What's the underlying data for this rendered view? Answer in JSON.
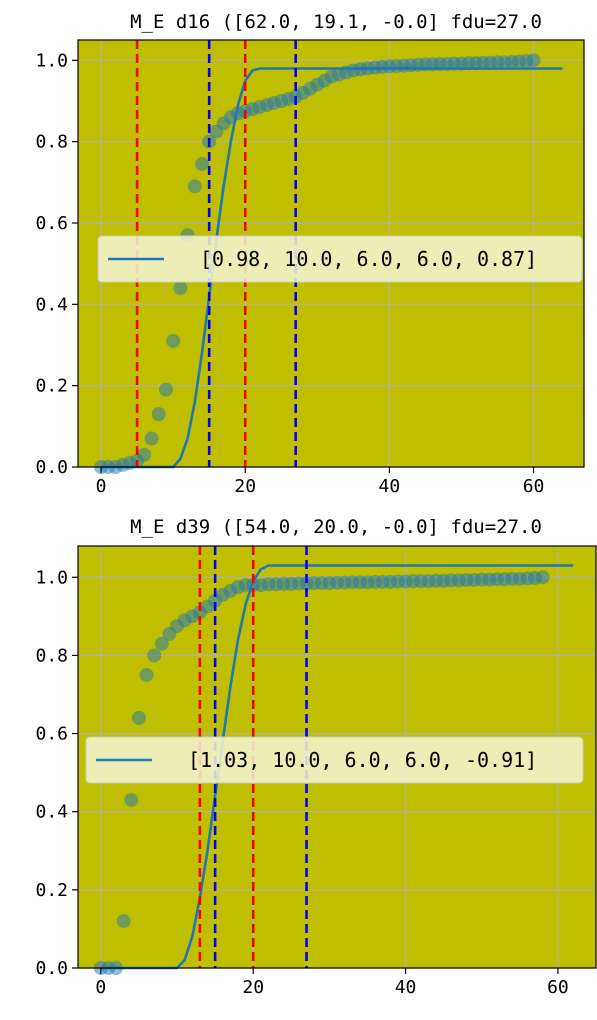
{
  "colors": {
    "axes_bg": "#bfbf00",
    "grid": "#b0b0b0",
    "points": "#1f77b4",
    "fit_line": "#1f77b4",
    "vline_red": "#ff0000",
    "vline_blue": "#0000ff",
    "legend_bg": "#f4f4d6"
  },
  "chart_data": [
    {
      "type": "scatter",
      "title": "M_E d16 ([62.0, 19.1, -0.0] fdu=27.0",
      "xlim": [
        -3.2,
        67
      ],
      "ylim": [
        0,
        1.05
      ],
      "x_ticks": [
        0,
        20,
        40,
        60
      ],
      "x_tick_labels": [
        "0",
        "20",
        "40",
        "60"
      ],
      "y_ticks": [
        0,
        0.2,
        0.4,
        0.6,
        0.8,
        1.0
      ],
      "y_tick_labels": [
        "0.0",
        "0.2",
        "0.4",
        "0.6",
        "0.8",
        "1.0"
      ],
      "grid": true,
      "legend_placement": "center-left",
      "series": [
        {
          "kind": "scatter",
          "x": [
            0,
            1,
            2,
            3,
            4,
            5,
            6,
            7,
            8,
            9,
            10,
            11,
            12,
            13,
            14,
            15,
            16,
            17,
            18,
            19,
            20,
            21,
            22,
            23,
            24,
            25,
            26,
            27,
            28,
            29,
            30,
            31,
            32,
            33,
            34,
            35,
            36,
            37,
            38,
            39,
            40,
            41,
            42,
            43,
            44,
            45,
            46,
            47,
            48,
            49,
            50,
            51,
            52,
            53,
            54,
            55,
            56,
            57,
            58,
            59,
            60
          ],
          "y": [
            0.0,
            0.0,
            0.0,
            0.005,
            0.01,
            0.015,
            0.03,
            0.07,
            0.13,
            0.19,
            0.31,
            0.44,
            0.57,
            0.69,
            0.745,
            0.8,
            0.825,
            0.845,
            0.86,
            0.87,
            0.875,
            0.88,
            0.885,
            0.89,
            0.895,
            0.9,
            0.905,
            0.91,
            0.92,
            0.93,
            0.94,
            0.95,
            0.96,
            0.965,
            0.97,
            0.975,
            0.978,
            0.98,
            0.982,
            0.984,
            0.985,
            0.986,
            0.987,
            0.988,
            0.989,
            0.99,
            0.99,
            0.991,
            0.991,
            0.992,
            0.992,
            0.993,
            0.993,
            0.994,
            0.994,
            0.995,
            0.995,
            0.996,
            0.997,
            0.998,
            1.0
          ]
        },
        {
          "kind": "line",
          "name": "[0.98, 10.0, 6.0, 6.0, 0.87]",
          "x": [
            0,
            10,
            11,
            12,
            13,
            14,
            15,
            16,
            17,
            18,
            19,
            20,
            21,
            22,
            30,
            40,
            50,
            60,
            64
          ],
          "y": [
            0,
            0,
            0.02,
            0.07,
            0.16,
            0.28,
            0.42,
            0.56,
            0.69,
            0.8,
            0.89,
            0.95,
            0.975,
            0.98,
            0.98,
            0.98,
            0.98,
            0.98,
            0.98
          ]
        }
      ],
      "vlines": [
        {
          "x": 5,
          "color": "red"
        },
        {
          "x": 15,
          "color": "blue"
        },
        {
          "x": 20,
          "color": "red"
        },
        {
          "x": 27,
          "color": "blue"
        }
      ]
    },
    {
      "type": "scatter",
      "title": "M_E d39 ([54.0, 20.0, -0.0] fdu=27.0",
      "xlim": [
        -3.0,
        65
      ],
      "ylim": [
        0,
        1.08
      ],
      "x_ticks": [
        0,
        20,
        40,
        60
      ],
      "x_tick_labels": [
        "0",
        "20",
        "40",
        "60"
      ],
      "y_ticks": [
        0,
        0.2,
        0.4,
        0.6,
        0.8,
        1.0
      ],
      "y_tick_labels": [
        "0.0",
        "0.2",
        "0.4",
        "0.6",
        "0.8",
        "1.0"
      ],
      "grid": true,
      "legend_placement": "center-left",
      "series": [
        {
          "kind": "scatter",
          "x": [
            0,
            1,
            2,
            3,
            4,
            5,
            6,
            7,
            8,
            9,
            10,
            11,
            12,
            13,
            14,
            15,
            16,
            17,
            18,
            19,
            20,
            21,
            22,
            23,
            24,
            25,
            26,
            27,
            28,
            29,
            30,
            31,
            32,
            33,
            34,
            35,
            36,
            37,
            38,
            39,
            40,
            41,
            42,
            43,
            44,
            45,
            46,
            47,
            48,
            49,
            50,
            51,
            52,
            53,
            54,
            55,
            56,
            57,
            58
          ],
          "y": [
            0.0,
            0.0,
            0.0,
            0.12,
            0.43,
            0.64,
            0.75,
            0.8,
            0.83,
            0.855,
            0.875,
            0.89,
            0.9,
            0.91,
            0.925,
            0.94,
            0.955,
            0.965,
            0.975,
            0.98,
            0.98,
            0.98,
            0.982,
            0.982,
            0.983,
            0.983,
            0.984,
            0.984,
            0.985,
            0.985,
            0.985,
            0.986,
            0.986,
            0.987,
            0.987,
            0.987,
            0.988,
            0.988,
            0.988,
            0.989,
            0.989,
            0.99,
            0.99,
            0.99,
            0.991,
            0.991,
            0.992,
            0.992,
            0.993,
            0.993,
            0.994,
            0.994,
            0.995,
            0.995,
            0.996,
            0.996,
            0.997,
            0.998,
            1.0
          ]
        },
        {
          "kind": "line",
          "name": "[1.03, 10.0, 6.0, 6.0, -0.91]",
          "x": [
            0,
            10,
            11,
            12,
            13,
            14,
            15,
            16,
            17,
            18,
            19,
            20,
            21,
            22,
            30,
            40,
            50,
            62
          ],
          "y": [
            0,
            0,
            0.02,
            0.08,
            0.18,
            0.3,
            0.44,
            0.58,
            0.72,
            0.84,
            0.93,
            0.99,
            1.02,
            1.03,
            1.03,
            1.03,
            1.03,
            1.03
          ]
        }
      ],
      "vlines": [
        {
          "x": 13,
          "color": "red"
        },
        {
          "x": 15,
          "color": "blue"
        },
        {
          "x": 20,
          "color": "red"
        },
        {
          "x": 27,
          "color": "blue"
        }
      ]
    }
  ]
}
